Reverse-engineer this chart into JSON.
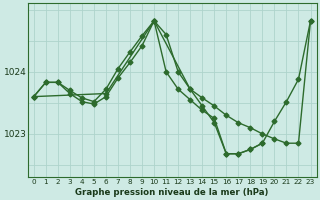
{
  "background_color": "#ceeae4",
  "grid_color": "#aed4cc",
  "line_color": "#2d6b2d",
  "title": "Graphe pression niveau de la mer (hPa)",
  "yticks": [
    1023,
    1024
  ],
  "xlim": [
    -0.5,
    23.5
  ],
  "ylim": [
    1022.3,
    1025.1
  ],
  "series1": {
    "x": [
      0,
      1,
      2,
      3,
      4,
      5,
      6,
      7,
      8,
      9,
      10,
      11,
      12,
      13,
      14,
      15,
      16,
      17,
      18,
      19,
      20,
      21,
      22,
      23
    ],
    "y": [
      1023.6,
      1023.83,
      1023.83,
      1023.7,
      1023.58,
      1023.52,
      1023.72,
      1024.05,
      1024.32,
      1024.58,
      1024.82,
      1024.6,
      1024.0,
      1023.72,
      1023.45,
      1023.18,
      1022.68,
      1022.68,
      1022.75,
      1022.85,
      1023.2,
      1023.52,
      1023.88,
      1024.82
    ]
  },
  "series2": {
    "x": [
      0,
      1,
      2,
      3,
      4,
      5,
      6,
      7,
      8,
      9,
      10,
      11,
      12,
      13,
      14,
      15,
      16,
      17,
      18,
      19
    ],
    "y": [
      1023.6,
      1023.83,
      1023.83,
      1023.65,
      1023.52,
      1023.48,
      1023.6,
      1023.9,
      1024.15,
      1024.42,
      1024.82,
      1024.0,
      1023.72,
      1023.55,
      1023.38,
      1023.25,
      1022.68,
      1022.68,
      1022.75,
      1022.85
    ]
  },
  "series3": {
    "x": [
      0,
      6,
      10,
      13,
      14,
      15,
      16,
      17,
      18,
      19,
      20,
      21,
      22,
      23
    ],
    "y": [
      1023.6,
      1023.65,
      1024.82,
      1023.72,
      1023.58,
      1023.45,
      1023.3,
      1023.18,
      1023.1,
      1023.0,
      1022.92,
      1022.85,
      1022.85,
      1024.82
    ]
  }
}
